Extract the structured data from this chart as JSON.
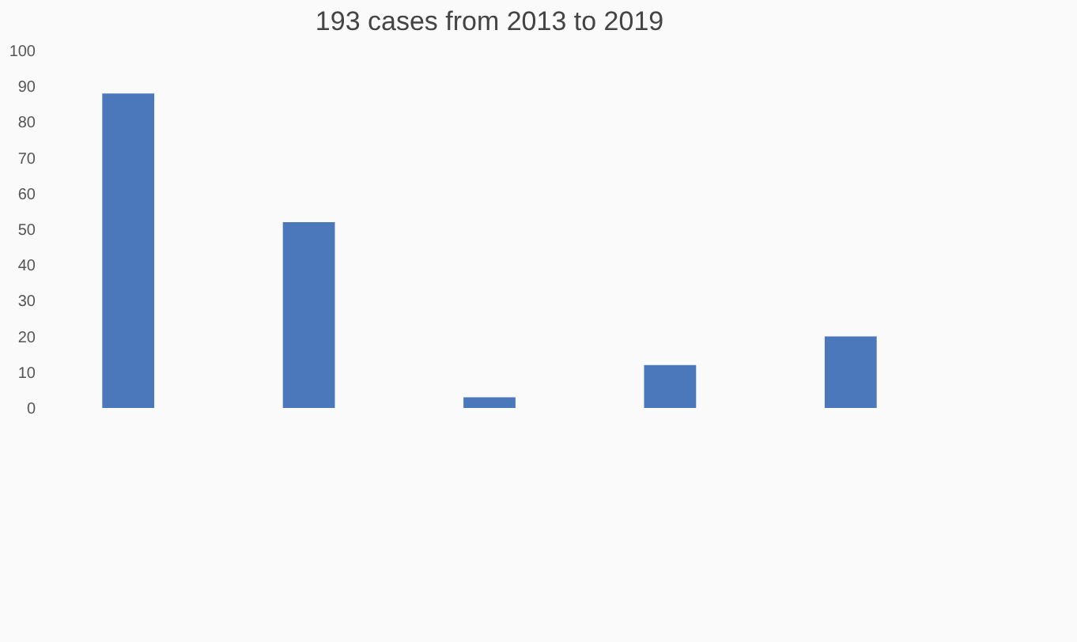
{
  "chart_data": {
    "type": "bar",
    "title": "193 cases from 2013 to 2019",
    "categories": [
      null,
      null,
      null,
      null,
      null
    ],
    "series": [
      {
        "color": "#4a78bb",
        "values": [
          88,
          52,
          3,
          12,
          20
        ]
      }
    ],
    "ylim": [
      0,
      100
    ],
    "yticks": [
      0,
      10,
      20,
      30,
      40,
      50,
      60,
      70,
      80,
      90,
      100
    ],
    "grid": false,
    "legend": false
  }
}
